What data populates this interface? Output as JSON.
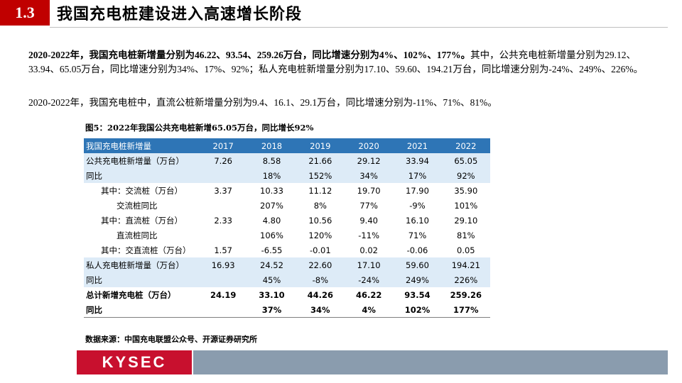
{
  "header": {
    "section": "1.3",
    "title": "我国充电桩建设进入高速增长阶段"
  },
  "paragraphs": [
    {
      "bold": "2020-2022年，我国充电桩新增量分别为46.22、93.54、259.26万台，同比增速分别为4%、102%、177%。",
      "text": "其中，公共充电桩新增量分别为29.12、33.94、65.05万台，同比增速分别为34%、17%、92%；私人充电桩新增量分别为17.10、59.60、194.21万台，同比增速分别为-24%、249%、226%。"
    },
    {
      "text": "2020-2022年，我国充电桩中，直流公桩新增量分别为9.4、16.1、29.1万台，同比增速分别为-11%、71%、81%。"
    }
  ],
  "figure_title": "图5：2022年我国公共充电桩新增65.05万台，同比增长92%",
  "table": {
    "header": [
      "我国充电桩新增量",
      "2017",
      "2018",
      "2019",
      "2020",
      "2021",
      "2022"
    ],
    "rows": [
      [
        "公共充电桩新增量（万台）",
        "7.26",
        "8.58",
        "21.66",
        "29.12",
        "33.94",
        "65.05"
      ],
      [
        "同比",
        null,
        "18%",
        "152%",
        "34%",
        "17%",
        "92%"
      ],
      [
        "其中：交流桩（万台）",
        "3.37",
        "10.33",
        "11.12",
        "19.70",
        "17.90",
        "35.90"
      ],
      [
        "交流桩同比",
        null,
        "207%",
        "8%",
        "77%",
        "-9%",
        "101%"
      ],
      [
        "其中：直流桩（万台）",
        "2.33",
        "4.80",
        "10.56",
        "9.40",
        "16.10",
        "29.10"
      ],
      [
        "直流桩同比",
        null,
        "106%",
        "120%",
        "-11%",
        "71%",
        "81%"
      ],
      [
        "其中：交直流桩（万台）",
        "1.57",
        "-6.55",
        "-0.01",
        "0.02",
        "-0.06",
        "0.05"
      ],
      [
        "私人充电桩新增量（万台）",
        "16.93",
        "24.52",
        "22.60",
        "17.10",
        "59.60",
        "194.21"
      ],
      [
        "同比",
        null,
        "45%",
        "-8%",
        "-24%",
        "249%",
        "226%"
      ],
      [
        "总计新增充电桩（万台）",
        "24.19",
        "33.10",
        "44.26",
        "46.22",
        "93.54",
        "259.26"
      ],
      [
        "同比",
        null,
        "37%",
        "34%",
        "4%",
        "102%",
        "177%"
      ]
    ]
  },
  "source": "数据来源：中国充电联盟公众号、开源证券研究所",
  "footer": {
    "logo": "KYSEC"
  }
}
